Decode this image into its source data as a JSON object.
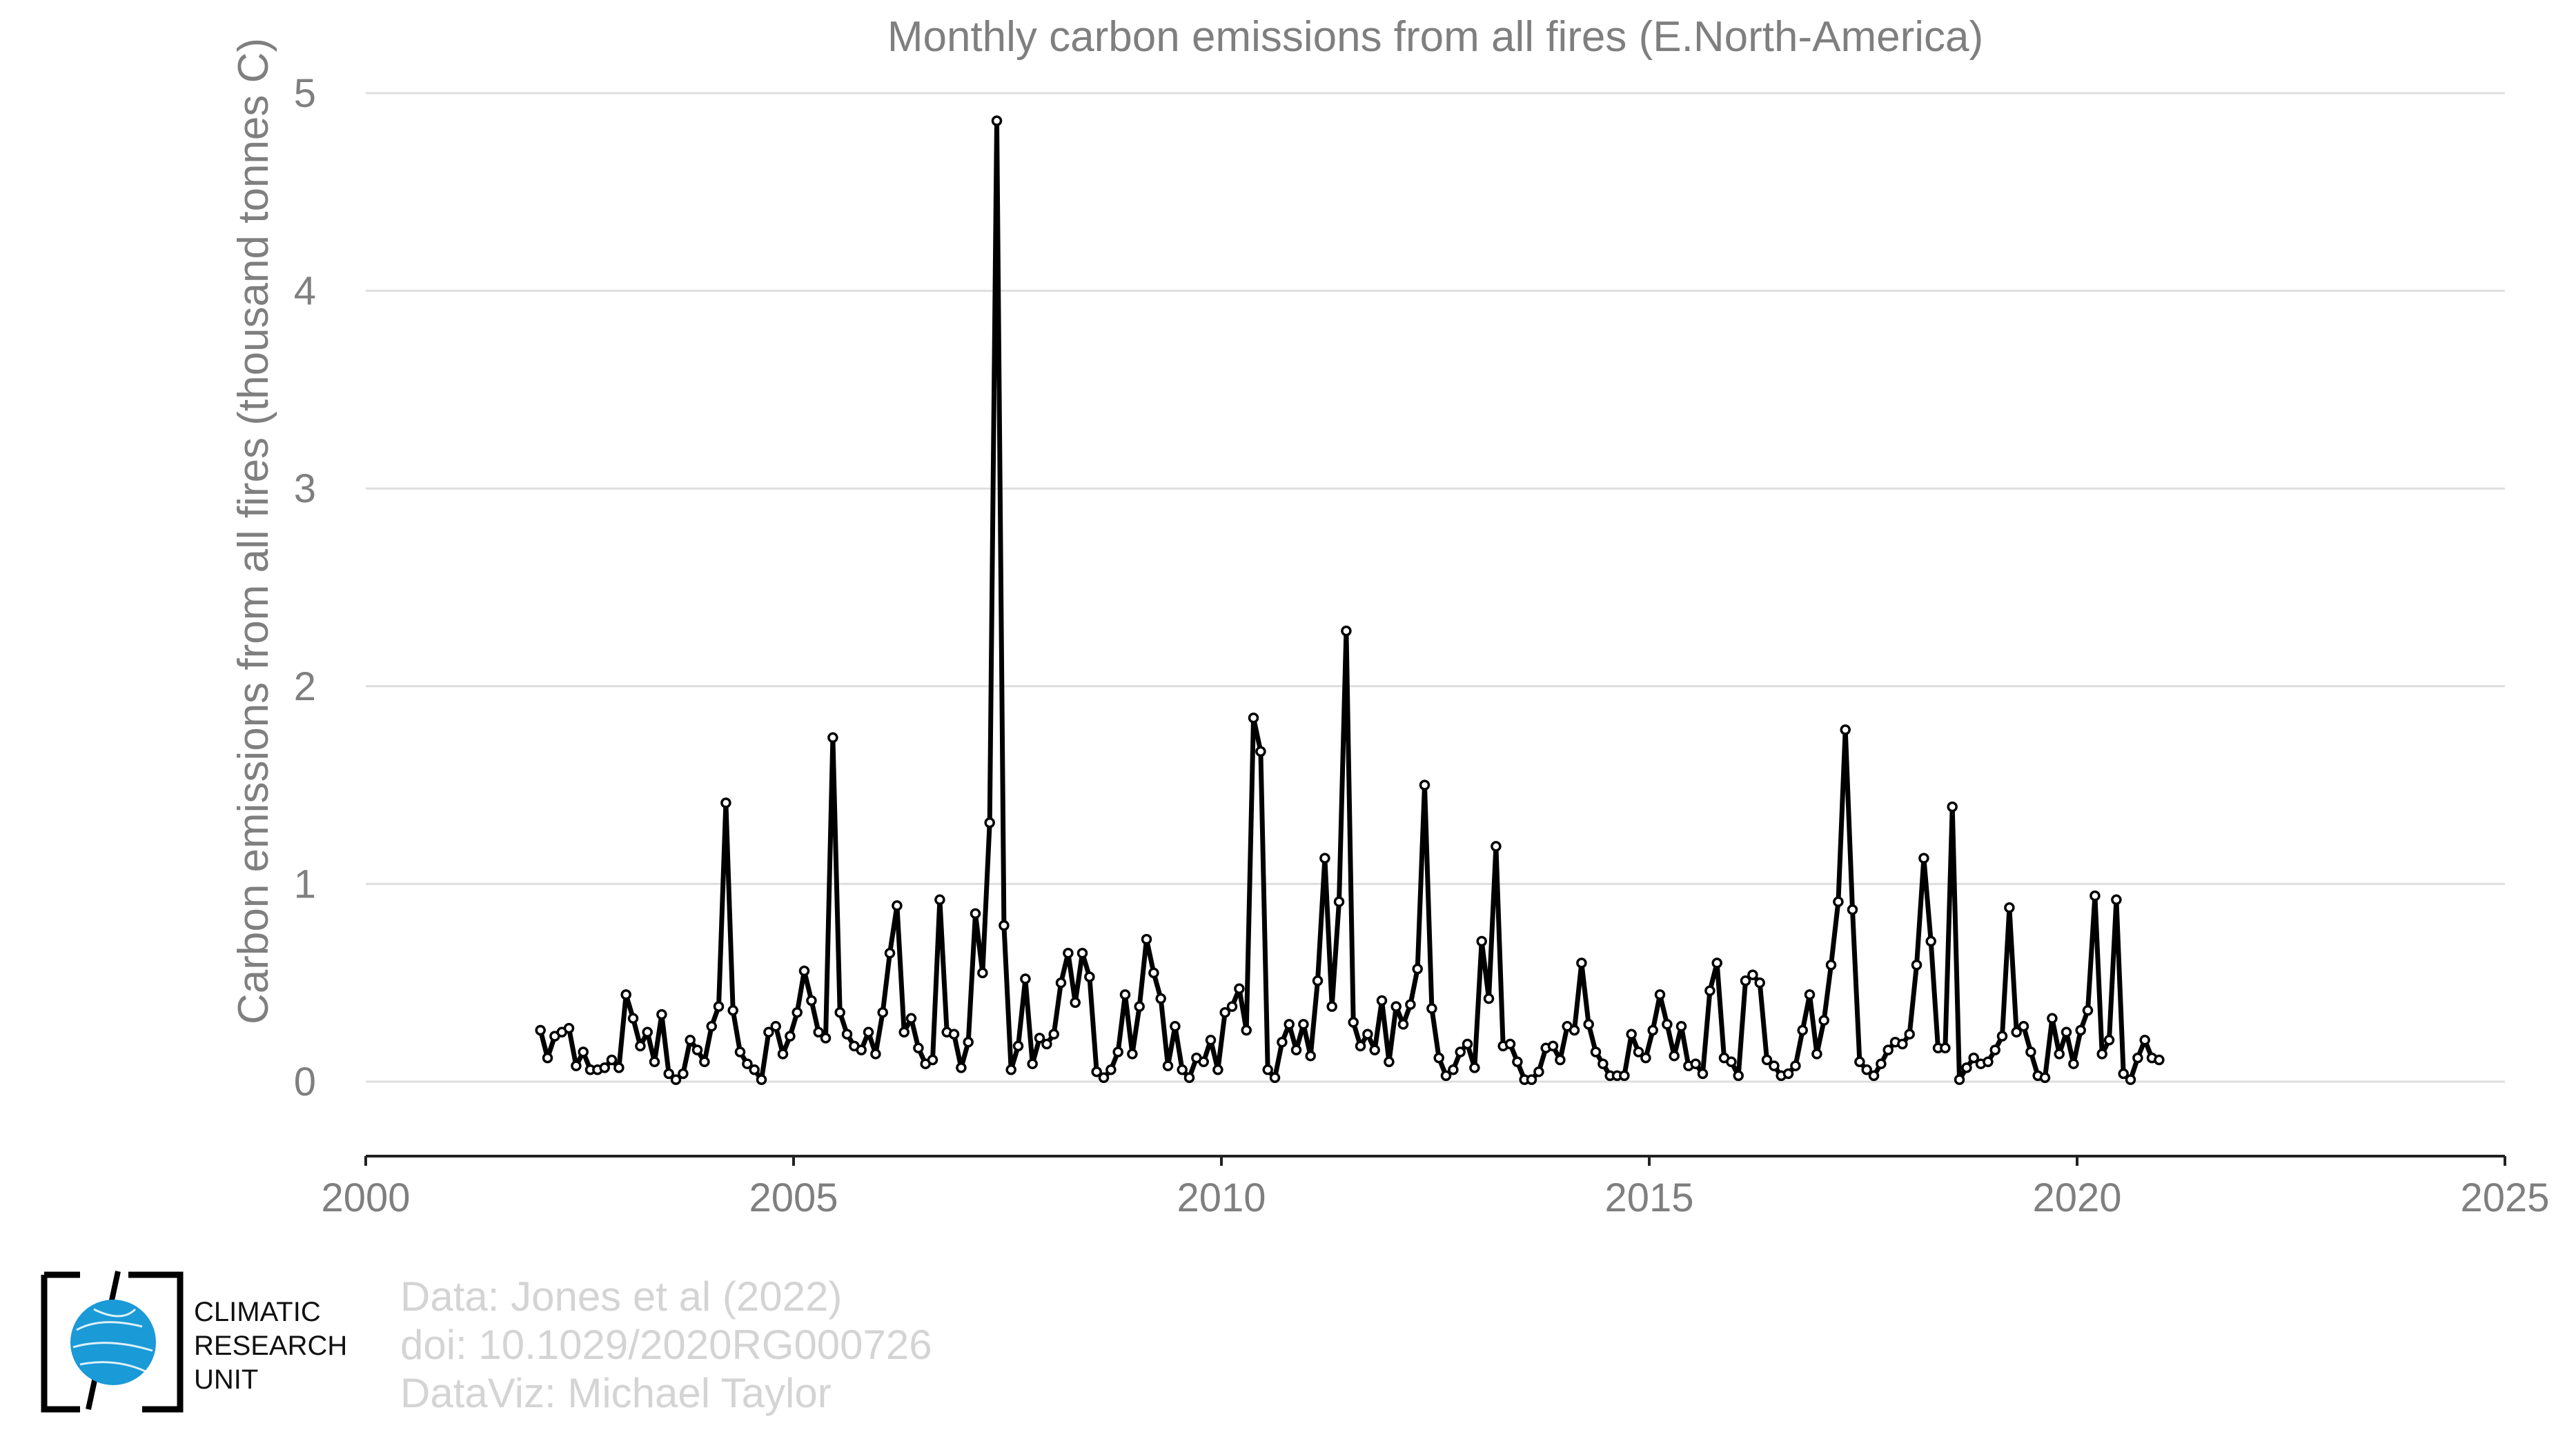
{
  "chart_data": {
    "type": "line",
    "title": "Monthly carbon emissions from all fires (E.North-America)",
    "xlabel": "",
    "ylabel": "Carbon emissions from all fires (thousand tonnes C)",
    "xlim": [
      2000,
      2025
    ],
    "ylim": [
      0,
      5
    ],
    "xticks": [
      2000,
      2005,
      2010,
      2015,
      2020,
      2025
    ],
    "yticks": [
      0,
      1,
      2,
      3,
      4,
      5
    ],
    "grid": true,
    "legend": "none",
    "series_color": "#000000",
    "x_start": 2002.042,
    "x_step_months": 1,
    "series": [
      {
        "values": [
          0.26,
          0.12,
          0.23,
          0.25,
          0.27,
          0.08,
          0.15,
          0.06,
          0.06,
          0.07,
          0.11,
          0.07,
          0.44,
          0.32,
          0.18,
          0.25,
          0.1,
          0.34,
          0.04,
          0.01,
          0.04,
          0.21,
          0.16,
          0.1,
          0.28,
          0.38,
          1.41,
          0.36,
          0.15,
          0.09,
          0.06,
          0.01,
          0.25,
          0.28,
          0.14,
          0.23,
          0.35,
          0.56,
          0.41,
          0.25,
          0.22,
          1.74,
          0.35,
          0.24,
          0.18,
          0.16,
          0.25,
          0.14,
          0.35,
          0.65,
          0.89,
          0.25,
          0.32,
          0.17,
          0.09,
          0.11,
          0.92,
          0.25,
          0.24,
          0.07,
          0.2,
          0.85,
          0.55,
          1.31,
          4.86,
          0.79,
          0.06,
          0.18,
          0.52,
          0.09,
          0.22,
          0.19,
          0.24,
          0.5,
          0.65,
          0.4,
          0.65,
          0.53,
          0.05,
          0.02,
          0.06,
          0.15,
          0.44,
          0.14,
          0.38,
          0.72,
          0.55,
          0.42,
          0.08,
          0.28,
          0.06,
          0.02,
          0.12,
          0.1,
          0.21,
          0.06,
          0.35,
          0.38,
          0.47,
          0.26,
          1.84,
          1.67,
          0.06,
          0.02,
          0.2,
          0.29,
          0.16,
          0.29,
          0.13,
          0.51,
          1.13,
          0.38,
          0.91,
          2.28,
          0.3,
          0.18,
          0.24,
          0.16,
          0.41,
          0.1,
          0.38,
          0.29,
          0.39,
          0.57,
          1.5,
          0.37,
          0.12,
          0.03,
          0.06,
          0.15,
          0.19,
          0.07,
          0.71,
          0.42,
          1.19,
          0.18,
          0.19,
          0.1,
          0.01,
          0.01,
          0.05,
          0.17,
          0.18,
          0.11,
          0.28,
          0.26,
          0.6,
          0.29,
          0.15,
          0.09,
          0.03,
          0.03,
          0.03,
          0.24,
          0.15,
          0.12,
          0.26,
          0.44,
          0.29,
          0.13,
          0.28,
          0.08,
          0.09,
          0.04,
          0.46,
          0.6,
          0.12,
          0.1,
          0.03,
          0.51,
          0.54,
          0.5,
          0.11,
          0.08,
          0.03,
          0.04,
          0.08,
          0.26,
          0.44,
          0.14,
          0.31,
          0.59,
          0.91,
          1.78,
          0.87,
          0.1,
          0.06,
          0.03,
          0.09,
          0.16,
          0.2,
          0.19,
          0.24,
          0.59,
          1.13,
          0.71,
          0.17,
          0.17,
          1.39,
          0.01,
          0.07,
          0.12,
          0.09,
          0.1,
          0.16,
          0.23,
          0.88,
          0.25,
          0.28,
          0.15,
          0.03,
          0.02,
          0.32,
          0.14,
          0.25,
          0.09,
          0.26,
          0.36,
          0.94,
          0.14,
          0.21,
          0.92,
          0.04,
          0.01,
          0.12,
          0.21,
          0.12,
          0.11
        ]
      }
    ]
  },
  "credits": {
    "line1": "Data: Jones et al (2022)",
    "line2": "doi: 10.1029/2020RG000726",
    "line3": "DataViz: Michael Taylor"
  },
  "logo": {
    "line1": "CLIMATIC",
    "line2": "RESEARCH",
    "line3": "UNIT",
    "globe_color": "#1a9ad7"
  }
}
